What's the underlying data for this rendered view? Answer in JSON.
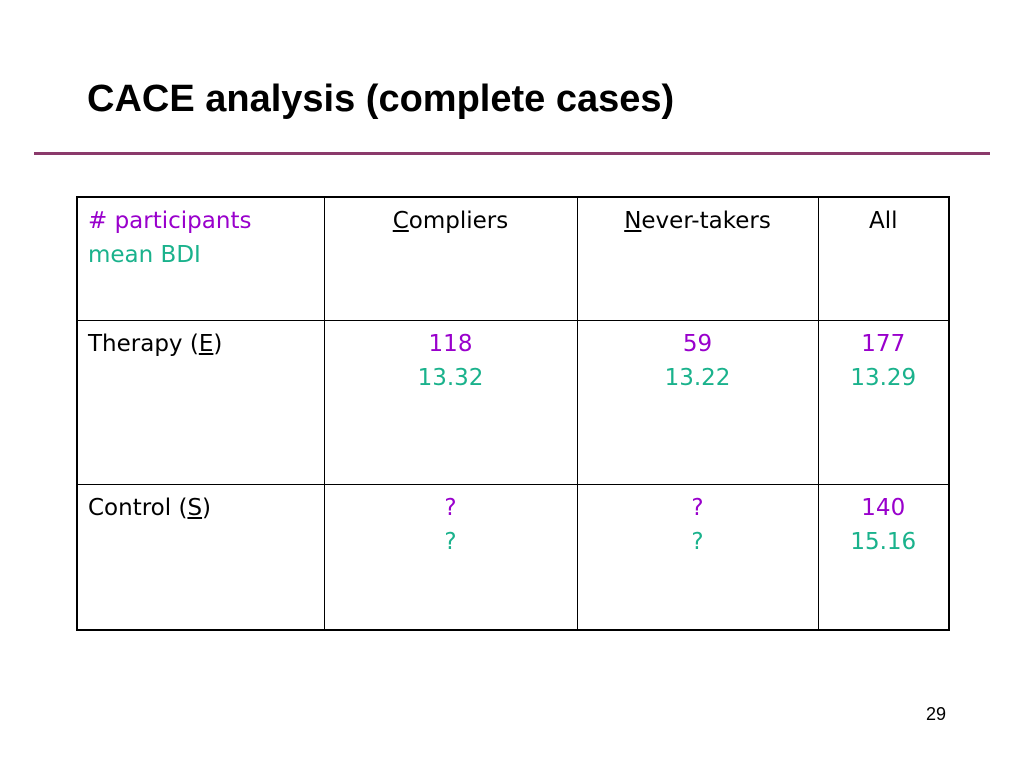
{
  "slide": {
    "title": "CACE analysis (complete cases)",
    "page_number": "29"
  },
  "colors": {
    "count": "#9900cc",
    "mean": "#1ab28c",
    "rule": "#8b3a6b"
  },
  "table": {
    "legend": {
      "count_label": "# participants",
      "mean_label": "mean BDI"
    },
    "columns": [
      {
        "initial": "C",
        "rest": "ompliers"
      },
      {
        "initial": "N",
        "rest": "ever-takers"
      },
      {
        "initial": "",
        "rest": "All"
      }
    ],
    "rows": [
      {
        "label_prefix": "Therapy (",
        "label_code": "E",
        "label_suffix": ")",
        "cells": [
          {
            "count": "118",
            "mean": "13.32"
          },
          {
            "count": "59",
            "mean": "13.22"
          },
          {
            "count": "177",
            "mean": "13.29"
          }
        ]
      },
      {
        "label_prefix": "Control (",
        "label_code": "S",
        "label_suffix": ")",
        "cells": [
          {
            "count": "?",
            "mean": "?"
          },
          {
            "count": "?",
            "mean": "?"
          },
          {
            "count": "140",
            "mean": "15.16"
          }
        ]
      }
    ]
  }
}
